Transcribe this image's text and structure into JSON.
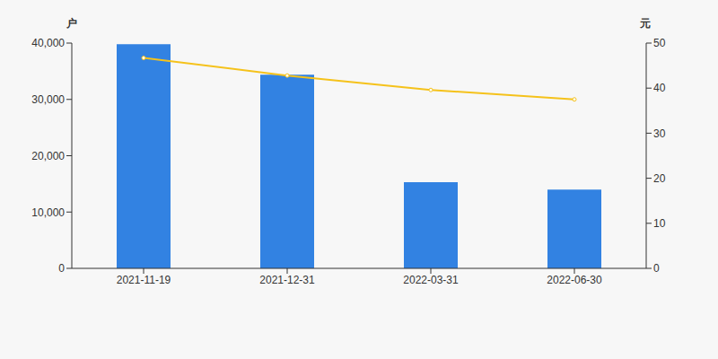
{
  "chart_data": {
    "type": "bar",
    "ylabel": "户",
    "y2label": "元",
    "categories": [
      "2021-11-19",
      "2021-12-31",
      "2022-03-31",
      "2022-06-30"
    ],
    "series": [
      {
        "type": "bar",
        "color": "#3282e2",
        "values": [
          39800,
          34400,
          15300,
          14000
        ]
      },
      {
        "type": "line",
        "axis": "y2",
        "color": "#f5c21b",
        "marker": "circle",
        "values": [
          46.7,
          42.8,
          39.6,
          37.5
        ]
      }
    ],
    "ylim": [
      0,
      40000
    ],
    "yticks": [
      0,
      {
        "value": 10000,
        "label": "10,000"
      },
      {
        "value": 20000,
        "label": "20,000"
      },
      {
        "value": 30000,
        "label": "30,000"
      },
      {
        "value": 40000,
        "label": "40,000"
      }
    ],
    "y2lim": [
      0,
      50
    ],
    "y2ticks": [
      0,
      10,
      20,
      30,
      40,
      50
    ],
    "grid": false
  }
}
